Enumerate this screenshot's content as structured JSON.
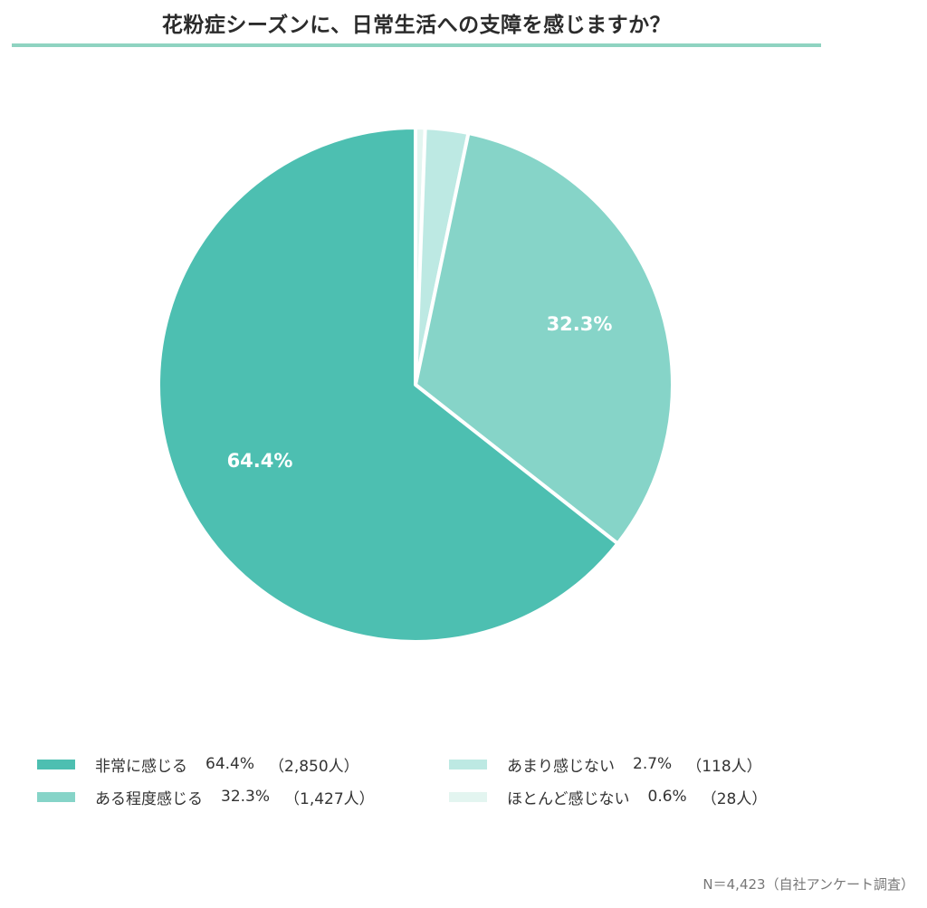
{
  "title": "花粉症シーズンに、日常生活への支障を感じますか？",
  "colors": {
    "title_rule": "#8fd3c1",
    "slice_separator": "#ffffff"
  },
  "chart_data": {
    "type": "pie",
    "title": "花粉症シーズンに、日常生活への支障を感じますか？",
    "start_angle_deg": 0,
    "direction": "clockwise",
    "categories": [
      "ほとんど感じない",
      "あまり感じない",
      "ある程度感じる",
      "非常に感じる"
    ],
    "values": [
      0.6,
      2.7,
      32.3,
      64.4
    ],
    "counts": [
      28,
      118,
      1427,
      2850
    ],
    "colors": [
      "#e3f5f0",
      "#bde9e3",
      "#86d4c8",
      "#4dbfb1"
    ],
    "data_labels": [
      "",
      "",
      "32.3%",
      "64.4%"
    ],
    "total_n": 4423,
    "legend_position": "bottom"
  },
  "slice_labels": {
    "s2": "32.3%",
    "s3": "64.4%"
  },
  "legend": {
    "items": [
      {
        "label": "非常に感じる",
        "pct": "64.4%",
        "count": "（2,850人）",
        "color": "#4dbfb1"
      },
      {
        "label": "ある程度感じる",
        "pct": "32.3%",
        "count": "（1,427人）",
        "color": "#86d4c8"
      },
      {
        "label": "あまり感じない",
        "pct": "2.7%",
        "count": "（118人）",
        "color": "#bde9e3"
      },
      {
        "label": "ほとんど感じない",
        "pct": "0.6%",
        "count": "（28人）",
        "color": "#e3f5f0"
      }
    ]
  },
  "footnote": "N＝4,423（自社アンケート調査）"
}
